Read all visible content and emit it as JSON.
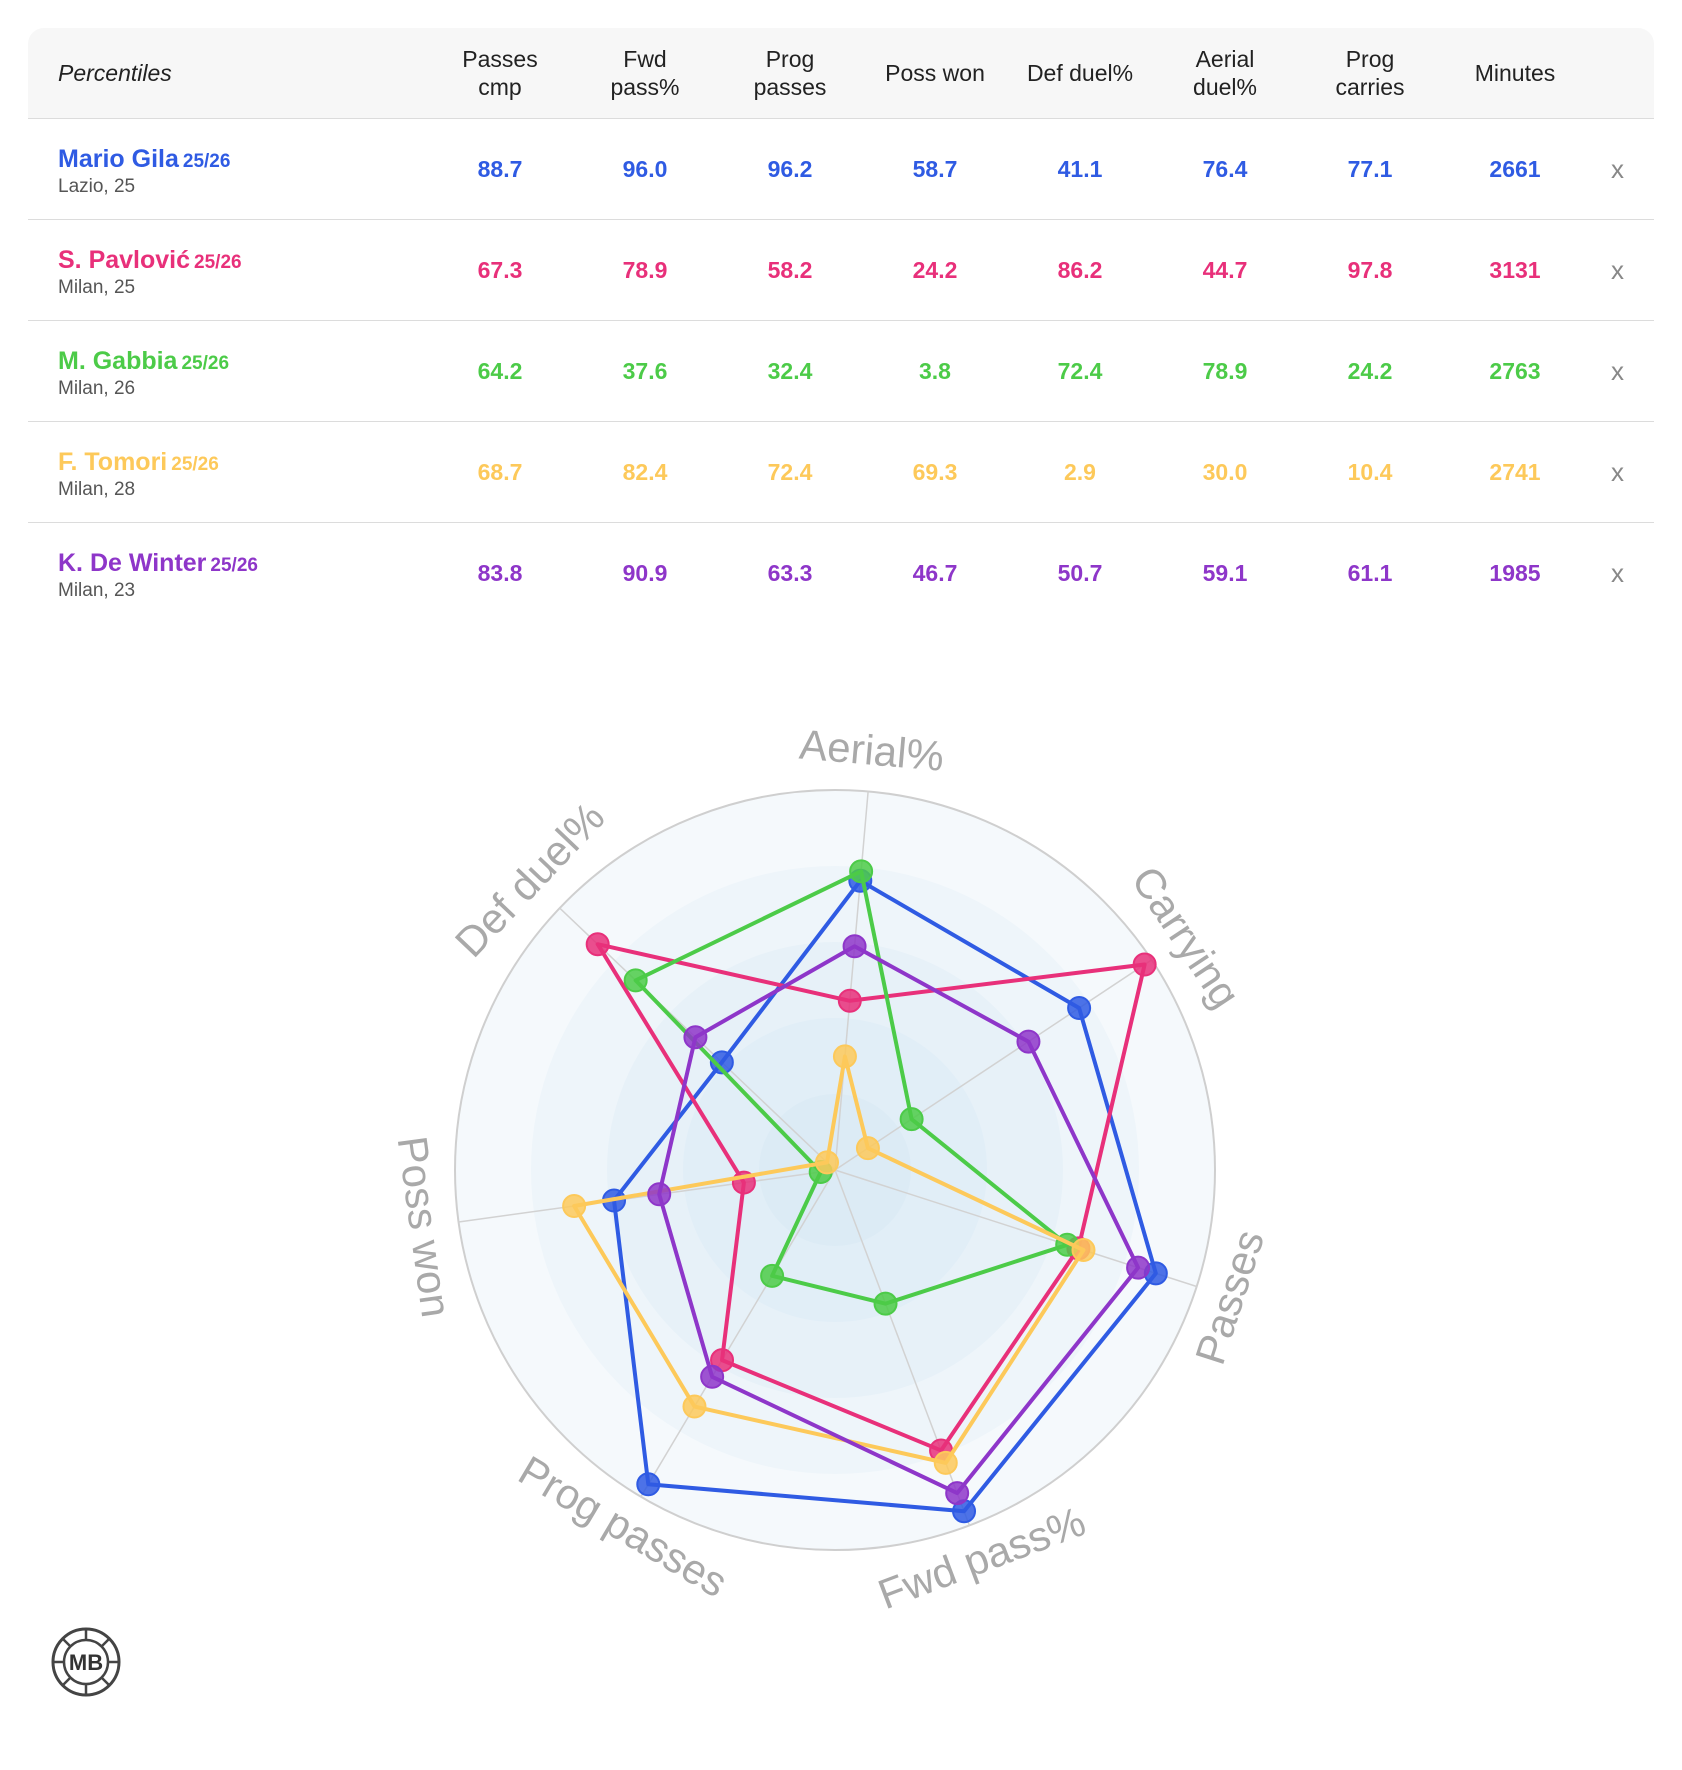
{
  "table": {
    "percentiles_label": "Percentiles",
    "columns": [
      {
        "line1": "Passes",
        "line2": "cmp"
      },
      {
        "line1": "Fwd",
        "line2": "pass%"
      },
      {
        "line1": "Prog",
        "line2": "passes"
      },
      {
        "line1": "Poss won",
        "line2": ""
      },
      {
        "line1": "Def duel%",
        "line2": ""
      },
      {
        "line1": "Aerial",
        "line2": "duel%"
      },
      {
        "line1": "Prog",
        "line2": "carries"
      },
      {
        "line1": "Minutes",
        "line2": ""
      }
    ],
    "remove_label": "x",
    "rows": [
      {
        "name": "Mario Gila",
        "season": "25/26",
        "info": "Lazio, 25",
        "color": "#2f5be3",
        "values": [
          "88.7",
          "96.0",
          "96.2",
          "58.7",
          "41.1",
          "76.4",
          "77.1",
          "2661"
        ]
      },
      {
        "name": "S. Pavlović",
        "season": "25/26",
        "info": "Milan, 25",
        "color": "#e8307a",
        "values": [
          "67.3",
          "78.9",
          "58.2",
          "24.2",
          "86.2",
          "44.7",
          "97.8",
          "3131"
        ]
      },
      {
        "name": "M. Gabbia",
        "season": "25/26",
        "info": "Milan, 26",
        "color": "#4ccb48",
        "values": [
          "64.2",
          "37.6",
          "32.4",
          "3.8",
          "72.4",
          "78.9",
          "24.2",
          "2763"
        ]
      },
      {
        "name": "F. Tomori",
        "season": "25/26",
        "info": "Milan, 28",
        "color": "#fdc95a",
        "values": [
          "68.7",
          "82.4",
          "72.4",
          "69.3",
          "2.9",
          "30.0",
          "10.4",
          "2741"
        ]
      },
      {
        "name": "K. De Winter",
        "season": "25/26",
        "info": "Milan, 23",
        "color": "#8e36c9",
        "values": [
          "83.8",
          "90.9",
          "63.3",
          "46.7",
          "50.7",
          "59.1",
          "61.1",
          "1985"
        ]
      }
    ]
  },
  "chart_data": {
    "type": "radar",
    "axes": [
      "Aerial%",
      "Carrying",
      "Passes",
      "Fwd pass%",
      "Prog passes",
      "Poss won",
      "Def duel%"
    ],
    "range": [
      0,
      100
    ],
    "series": [
      {
        "name": "Mario Gila",
        "color": "#2f5be3",
        "values": [
          76.4,
          77.1,
          88.7,
          96.0,
          96.2,
          58.7,
          41.1
        ]
      },
      {
        "name": "S. Pavlović",
        "color": "#e8307a",
        "values": [
          44.7,
          97.8,
          67.3,
          78.9,
          58.2,
          24.2,
          86.2
        ]
      },
      {
        "name": "M. Gabbia",
        "color": "#4ccb48",
        "values": [
          78.9,
          24.2,
          64.2,
          37.6,
          32.4,
          3.8,
          72.4
        ]
      },
      {
        "name": "F. Tomori",
        "color": "#fdc95a",
        "values": [
          30.0,
          10.4,
          68.7,
          82.4,
          72.4,
          69.3,
          2.9
        ]
      },
      {
        "name": "K. De Winter",
        "color": "#8e36c9",
        "values": [
          59.1,
          61.1,
          83.8,
          90.9,
          63.3,
          46.7,
          50.7
        ]
      }
    ],
    "grid": true
  },
  "logo": {
    "text": "MB"
  }
}
